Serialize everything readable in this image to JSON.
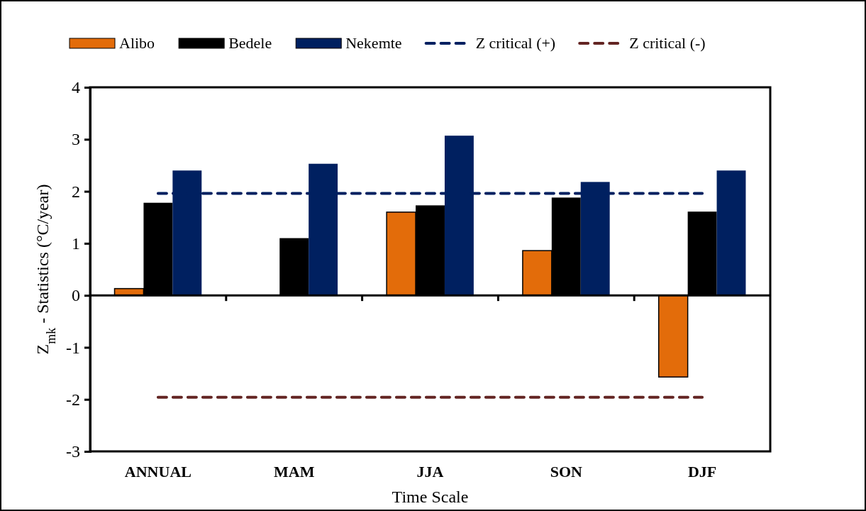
{
  "chart_data": {
    "type": "bar",
    "xlabel": "Time Scale",
    "ylabel": "Z$_{mk}$ - Statistics (°C/year)",
    "categories": [
      "ANNUAL",
      "MAM",
      "JJA",
      "SON",
      "DJF"
    ],
    "series": [
      {
        "name": "Alibo",
        "color": "#e36c0a",
        "values": [
          0.13,
          null,
          1.6,
          0.86,
          -1.57
        ]
      },
      {
        "name": "Bedele",
        "color": "#000000",
        "values": [
          1.78,
          1.1,
          1.73,
          1.88,
          1.61
        ]
      },
      {
        "name": "Nekemte",
        "color": "#002060",
        "values": [
          2.4,
          2.53,
          3.07,
          2.18,
          2.4
        ]
      },
      {
        "name": "Z critical (+)",
        "type": "line",
        "color": "#002060",
        "line_style": "dashed",
        "values": [
          1.96,
          1.96,
          1.96,
          1.96,
          1.96
        ]
      },
      {
        "name": "Z critical (-)",
        "type": "line",
        "color": "#632523",
        "line_style": "dashed",
        "values": [
          -1.96,
          -1.96,
          -1.96,
          -1.96,
          -1.96
        ]
      }
    ],
    "ylim": [
      -3,
      4
    ],
    "yticks": [
      -3,
      -2,
      -1,
      0,
      1,
      2,
      3,
      4
    ],
    "grid": false,
    "legend": "top",
    "marker": "none"
  }
}
